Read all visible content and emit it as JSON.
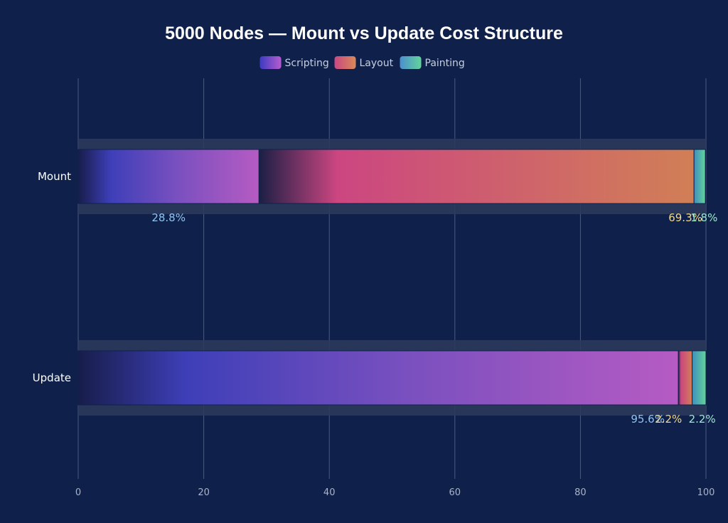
{
  "chart_data": {
    "type": "bar",
    "orientation": "horizontal",
    "stacked": true,
    "title": "5000 Nodes — Mount vs Update Cost Structure",
    "categories": [
      "Mount",
      "Update"
    ],
    "series": [
      {
        "name": "Scripting",
        "values": [
          28.8,
          95.6
        ],
        "color": "#8a4fd0",
        "label_color": "#8fc3f0"
      },
      {
        "name": "Layout",
        "values": [
          69.3,
          2.2
        ],
        "color": "#d1636f",
        "label_color": "#f4d98a"
      },
      {
        "name": "Painting",
        "values": [
          1.8,
          2.2
        ],
        "color": "#5bc3a0",
        "label_color": "#9ce8cf"
      }
    ],
    "data_labels": [
      [
        "28.8%",
        "95.6%"
      ],
      [
        "69.3%",
        "2.2%"
      ],
      [
        "1.8%",
        "2.2%"
      ]
    ],
    "xlim": [
      0,
      100
    ],
    "xticks": [
      0,
      20,
      40,
      60,
      80,
      100
    ],
    "grid": true,
    "legend_position": "top-center"
  }
}
